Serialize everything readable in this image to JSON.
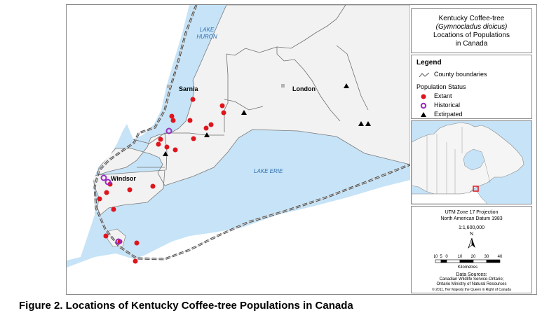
{
  "title": {
    "line1": "Kentucky Coffee-tree",
    "line2": "(Gymnocladus dioicus)",
    "line3": "Locations of Populations",
    "line4": "in Canada"
  },
  "legend": {
    "heading": "Legend",
    "county_boundaries": "County boundaries",
    "population_status": "Population Status",
    "extant": "Extant",
    "historical": "Historical",
    "extirpated": "Extirpated"
  },
  "map_labels": {
    "lake_huron": [
      "LAKE",
      "HURON"
    ],
    "lake_erie": "LAKE ERIE",
    "sarnia": "Sarnia",
    "london": "London",
    "windsor": "Windsor"
  },
  "scale": {
    "projection": "UTM Zone 17 Projection",
    "datum": "North American Datum 1983",
    "ratio": "1:1,600,000",
    "north": "N",
    "ticks": [
      "10",
      "5",
      "0",
      "10",
      "20",
      "30",
      "40"
    ],
    "unit": "Kilometres",
    "sources_heading": "Data Sources:",
    "source1": "Canadian Wildlife Service-Ontario;",
    "source2": "Ontario Ministry of Natural Resources",
    "copyright": "© 2011, Her Majesty the Queen in Right of Canada"
  },
  "caption": "Figure 2. Locations of Kentucky Coffee-tree Populations in Canada",
  "colors": {
    "water": "#c6e3f7",
    "land": "#f2f2f2",
    "extant": "#e0141c",
    "historical": "#9a2bbf",
    "extirpated": "#000000",
    "border": "#555555"
  }
}
